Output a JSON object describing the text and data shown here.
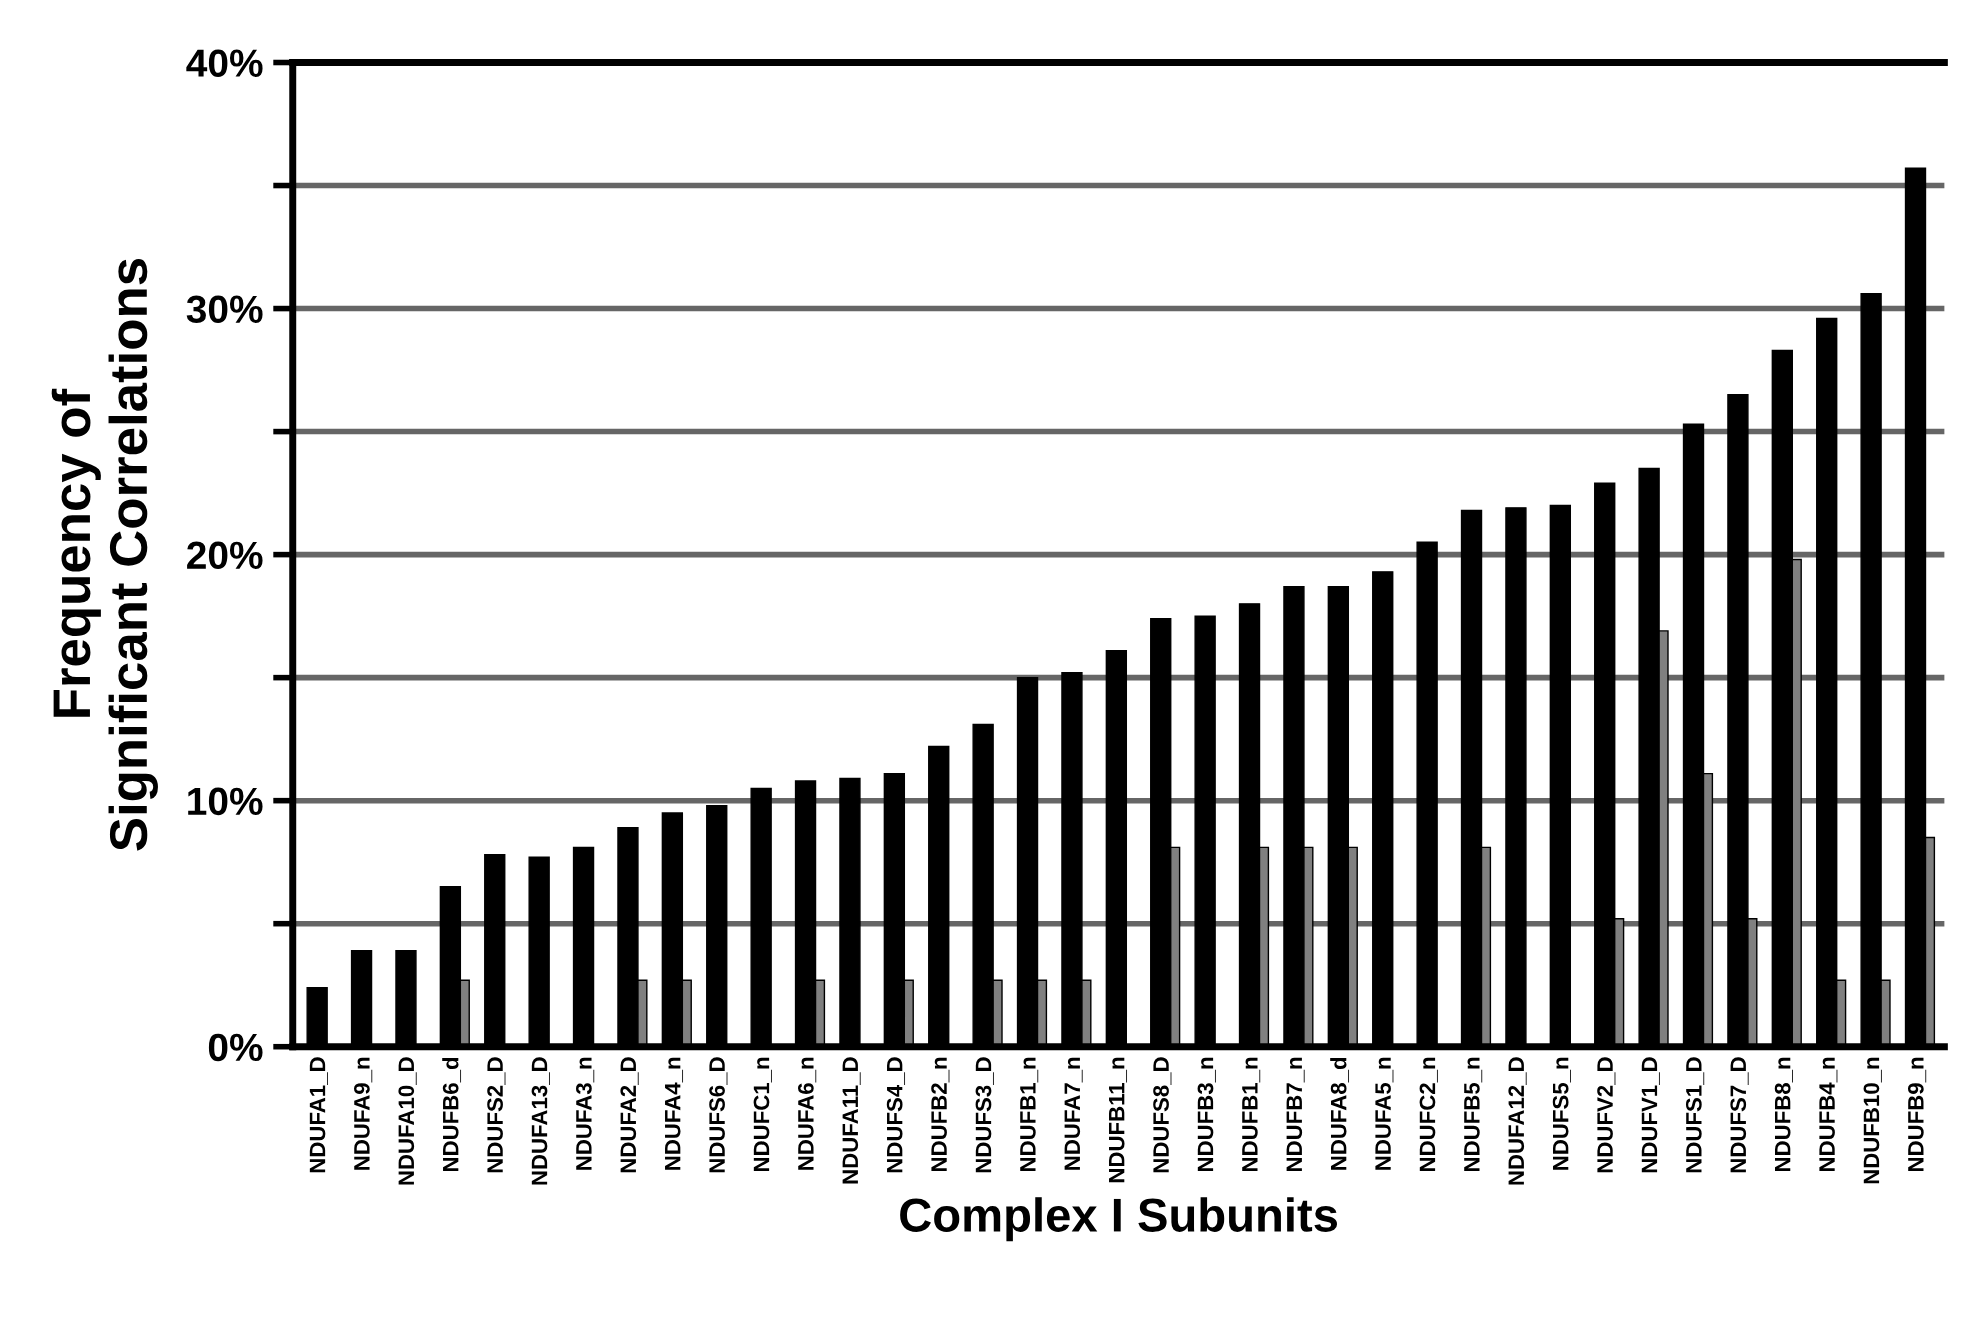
{
  "chart_data": {
    "type": "bar",
    "xlabel": "Complex I Subunits",
    "ylabel": "Frequency of\nSignificant Correlations",
    "categories": [
      "NDUFA1_D",
      "NDUFA9_n",
      "NDUFA10_D",
      "NDUFB6_d",
      "NDUFS2_D",
      "NDUFA13_D",
      "NDUFA3_n",
      "NDUFA2_D",
      "NDUFA4_n",
      "NDUFS6_D",
      "NDUFC1_n",
      "NDUFA6_n",
      "NDUFA11_D",
      "NDUFS4_D",
      "NDUFB2_n",
      "NDUFS3_D",
      "NDUFB1_n",
      "NDUFA7_n",
      "NDUFB11_n",
      "NDUFS8_D",
      "NDUFB3_n",
      "NDUFB1_n",
      "NDUFB7_n",
      "NDUFA8_d",
      "NDUFA5_n",
      "NDUFC2_n",
      "NDUFB5_n",
      "NDUFA12_D",
      "NDUFS5_n",
      "NDUFV2_D",
      "NDUFV1_D",
      "NDUFS1_D",
      "NDUFS7_D",
      "NDUFB8_n",
      "NDUFB4_n",
      "NDUFB10_n",
      "NDUFB9_n"
    ],
    "series": [
      {
        "color": "#000000",
        "values": [
          2.4,
          3.9,
          3.9,
          6.5,
          7.8,
          7.7,
          8.1,
          8.9,
          9.5,
          9.8,
          10.5,
          10.8,
          10.9,
          11.1,
          12.2,
          13.1,
          15.0,
          15.2,
          16.1,
          17.4,
          17.5,
          18.0,
          18.7,
          18.7,
          19.3,
          20.5,
          21.8,
          21.9,
          22.0,
          22.9,
          23.5,
          25.3,
          26.5,
          28.3,
          29.6,
          30.6,
          35.7
        ]
      },
      {
        "color": "#808080",
        "values": [
          null,
          null,
          null,
          2.7,
          null,
          null,
          null,
          2.7,
          2.7,
          null,
          null,
          2.7,
          null,
          2.7,
          null,
          2.7,
          2.7,
          2.7,
          null,
          8.1,
          null,
          8.1,
          8.1,
          8.1,
          null,
          null,
          8.1,
          null,
          null,
          5.2,
          16.9,
          11.1,
          5.2,
          19.8,
          2.7,
          2.7,
          8.5
        ]
      }
    ],
    "ylim": [
      0,
      40
    ],
    "yticks": [
      {
        "value": 0,
        "label": "0%"
      },
      {
        "value": 5,
        "label": null
      },
      {
        "value": 10,
        "label": "10%"
      },
      {
        "value": 15,
        "label": null
      },
      {
        "value": 20,
        "label": "20%"
      },
      {
        "value": 25,
        "label": null
      },
      {
        "value": 30,
        "label": "30%"
      },
      {
        "value": 35,
        "label": null
      },
      {
        "value": 40,
        "label": "40%"
      }
    ],
    "grid": "y"
  }
}
